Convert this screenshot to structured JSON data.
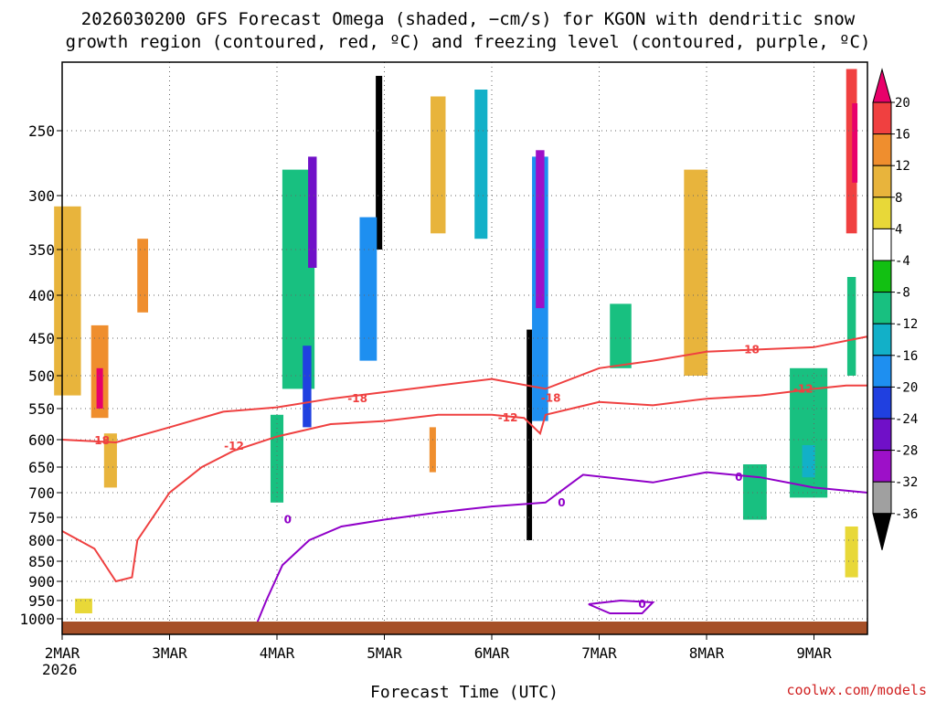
{
  "chart_data": {
    "type": "heatmap",
    "title_lines": [
      "2026030200 GFS Forecast Omega (shaded, −cm/s) for KGON with dendritic snow",
      "growth region (contoured, red, ºC) and freezing level (contoured, purple, ºC)"
    ],
    "xlabel": "Forecast Time (UTC)",
    "x_ticks": [
      "2MAR",
      "3MAR",
      "4MAR",
      "5MAR",
      "6MAR",
      "7MAR",
      "8MAR",
      "9MAR"
    ],
    "x_year": "2026",
    "y_ticks": [
      "250",
      "300",
      "350",
      "400",
      "450",
      "500",
      "550",
      "600",
      "650",
      "700",
      "750",
      "800",
      "850",
      "900",
      "950",
      "1000"
    ],
    "y_ticks_hpa": [
      250,
      300,
      350,
      400,
      450,
      500,
      550,
      600,
      650,
      700,
      750,
      800,
      850,
      900,
      950,
      1000
    ],
    "ylim_hpa": [
      200,
      1030
    ],
    "xlim_days": [
      0,
      7.5
    ],
    "colorbar": {
      "labels": [
        "20",
        "16",
        "12",
        "8",
        "4",
        "-4",
        "-8",
        "-12",
        "-16",
        "-20",
        "-24",
        "-28",
        "-32",
        "-36"
      ],
      "colors": [
        "#e8006a",
        "#f04040",
        "#ef8e2e",
        "#e8b43c",
        "#e8d838",
        "#ffffff",
        "#12c012",
        "#18c080",
        "#12b0c8",
        "#1e8ff0",
        "#2040e0",
        "#7010c8",
        "#9d10c8",
        "#a0a0a0",
        "#000000"
      ]
    },
    "omega_cells": [
      {
        "day": 0.05,
        "p": 420,
        "dd": 0.25,
        "dp": 220,
        "v": 8
      },
      {
        "day": 0.35,
        "p": 500,
        "dd": 0.16,
        "dp": 130,
        "v": 14
      },
      {
        "day": 0.35,
        "p": 520,
        "dd": 0.06,
        "dp": 60,
        "v": 20
      },
      {
        "day": 0.45,
        "p": 640,
        "dd": 0.12,
        "dp": 100,
        "v": 8
      },
      {
        "day": 0.2,
        "p": 965,
        "dd": 0.16,
        "dp": 40,
        "v": 5
      },
      {
        "day": 0.75,
        "p": 380,
        "dd": 0.1,
        "dp": 80,
        "v": 12
      },
      {
        "day": 2.2,
        "p": 400,
        "dd": 0.3,
        "dp": 240,
        "v": -8
      },
      {
        "day": 2.33,
        "p": 320,
        "dd": 0.08,
        "dp": 100,
        "v": -24
      },
      {
        "day": 2.28,
        "p": 520,
        "dd": 0.08,
        "dp": 120,
        "v": -20
      },
      {
        "day": 2.0,
        "p": 640,
        "dd": 0.12,
        "dp": 160,
        "v": -8
      },
      {
        "day": 2.95,
        "p": 280,
        "dd": 0.06,
        "dp": 140,
        "v": -36
      },
      {
        "day": 2.85,
        "p": 400,
        "dd": 0.16,
        "dp": 160,
        "v": -16
      },
      {
        "day": 3.5,
        "p": 280,
        "dd": 0.14,
        "dp": 110,
        "v": 10
      },
      {
        "day": 3.45,
        "p": 620,
        "dd": 0.06,
        "dp": 80,
        "v": 12
      },
      {
        "day": 3.9,
        "p": 280,
        "dd": 0.12,
        "dp": 120,
        "v": -12
      },
      {
        "day": 4.35,
        "p": 620,
        "dd": 0.05,
        "dp": 360,
        "v": -36
      },
      {
        "day": 4.45,
        "p": 420,
        "dd": 0.15,
        "dp": 300,
        "v": -16
      },
      {
        "day": 4.45,
        "p": 340,
        "dd": 0.08,
        "dp": 150,
        "v": -28
      },
      {
        "day": 5.2,
        "p": 450,
        "dd": 0.2,
        "dp": 80,
        "v": -8
      },
      {
        "day": 5.9,
        "p": 390,
        "dd": 0.22,
        "dp": 220,
        "v": 8
      },
      {
        "day": 6.45,
        "p": 700,
        "dd": 0.22,
        "dp": 110,
        "v": -8
      },
      {
        "day": 6.95,
        "p": 600,
        "dd": 0.35,
        "dp": 220,
        "v": -8
      },
      {
        "day": 6.95,
        "p": 640,
        "dd": 0.12,
        "dp": 60,
        "v": -12
      },
      {
        "day": 7.35,
        "p": 830,
        "dd": 0.12,
        "dp": 120,
        "v": 6
      },
      {
        "day": 7.35,
        "p": 270,
        "dd": 0.1,
        "dp": 130,
        "v": 16
      },
      {
        "day": 7.38,
        "p": 260,
        "dd": 0.05,
        "dp": 60,
        "v": 20
      },
      {
        "day": 7.35,
        "p": 440,
        "dd": 0.08,
        "dp": 120,
        "v": -10
      }
    ],
    "contours": [
      {
        "name": "dgz-minus-18",
        "color": "#ef4040",
        "label": "-18",
        "label_at": [
          [
            0.35,
            602
          ],
          [
            2.75,
            535
          ],
          [
            4.55,
            534
          ],
          [
            6.4,
            465
          ]
        ],
        "points": [
          [
            0,
            600
          ],
          [
            0.5,
            605
          ],
          [
            1.0,
            580
          ],
          [
            1.5,
            555
          ],
          [
            2.0,
            548
          ],
          [
            2.5,
            535
          ],
          [
            3.0,
            525
          ],
          [
            3.5,
            515
          ],
          [
            4.0,
            505
          ],
          [
            4.5,
            520
          ],
          [
            5.0,
            490
          ],
          [
            5.5,
            480
          ],
          [
            6.0,
            468
          ],
          [
            6.5,
            465
          ],
          [
            7.0,
            462
          ],
          [
            7.5,
            448
          ]
        ]
      },
      {
        "name": "dgz-minus-12",
        "color": "#ef4040",
        "label": "-12",
        "label_at": [
          [
            1.6,
            612
          ],
          [
            4.15,
            565
          ],
          [
            6.9,
            520
          ]
        ],
        "points": [
          [
            0,
            780
          ],
          [
            0.3,
            820
          ],
          [
            0.5,
            900
          ],
          [
            0.65,
            890
          ],
          [
            0.7,
            800
          ],
          [
            1.0,
            700
          ],
          [
            1.3,
            650
          ],
          [
            1.6,
            620
          ],
          [
            2.0,
            595
          ],
          [
            2.5,
            575
          ],
          [
            3.0,
            570
          ],
          [
            3.5,
            560
          ],
          [
            4.0,
            560
          ],
          [
            4.3,
            565
          ],
          [
            4.45,
            590
          ],
          [
            4.5,
            560
          ],
          [
            5.0,
            540
          ],
          [
            5.5,
            545
          ],
          [
            6.0,
            535
          ],
          [
            6.5,
            530
          ],
          [
            7.0,
            520
          ],
          [
            7.3,
            515
          ],
          [
            7.5,
            515
          ]
        ]
      },
      {
        "name": "freezing-level-0",
        "color": "#9000c8",
        "label": "0",
        "label_at": [
          [
            2.1,
            755
          ],
          [
            4.65,
            720
          ],
          [
            6.3,
            670
          ],
          [
            5.4,
            960
          ]
        ],
        "points": [
          [
            1.8,
            1020
          ],
          [
            1.9,
            950
          ],
          [
            2.05,
            860
          ],
          [
            2.3,
            800
          ],
          [
            2.6,
            770
          ],
          [
            3.0,
            755
          ],
          [
            3.5,
            740
          ],
          [
            4.0,
            728
          ],
          [
            4.5,
            720
          ],
          [
            4.85,
            665
          ],
          [
            5.5,
            680
          ],
          [
            6.0,
            660
          ],
          [
            6.5,
            670
          ],
          [
            7.0,
            690
          ],
          [
            7.5,
            700
          ]
        ]
      },
      {
        "name": "freezing-level-0-b",
        "color": "#9000c8",
        "label": "",
        "label_at": [],
        "points": [
          [
            4.9,
            960
          ],
          [
            5.2,
            950
          ],
          [
            5.5,
            955
          ],
          [
            5.4,
            985
          ],
          [
            5.1,
            985
          ],
          [
            4.9,
            960
          ]
        ]
      }
    ]
  },
  "credit": "coolwx.com/models"
}
